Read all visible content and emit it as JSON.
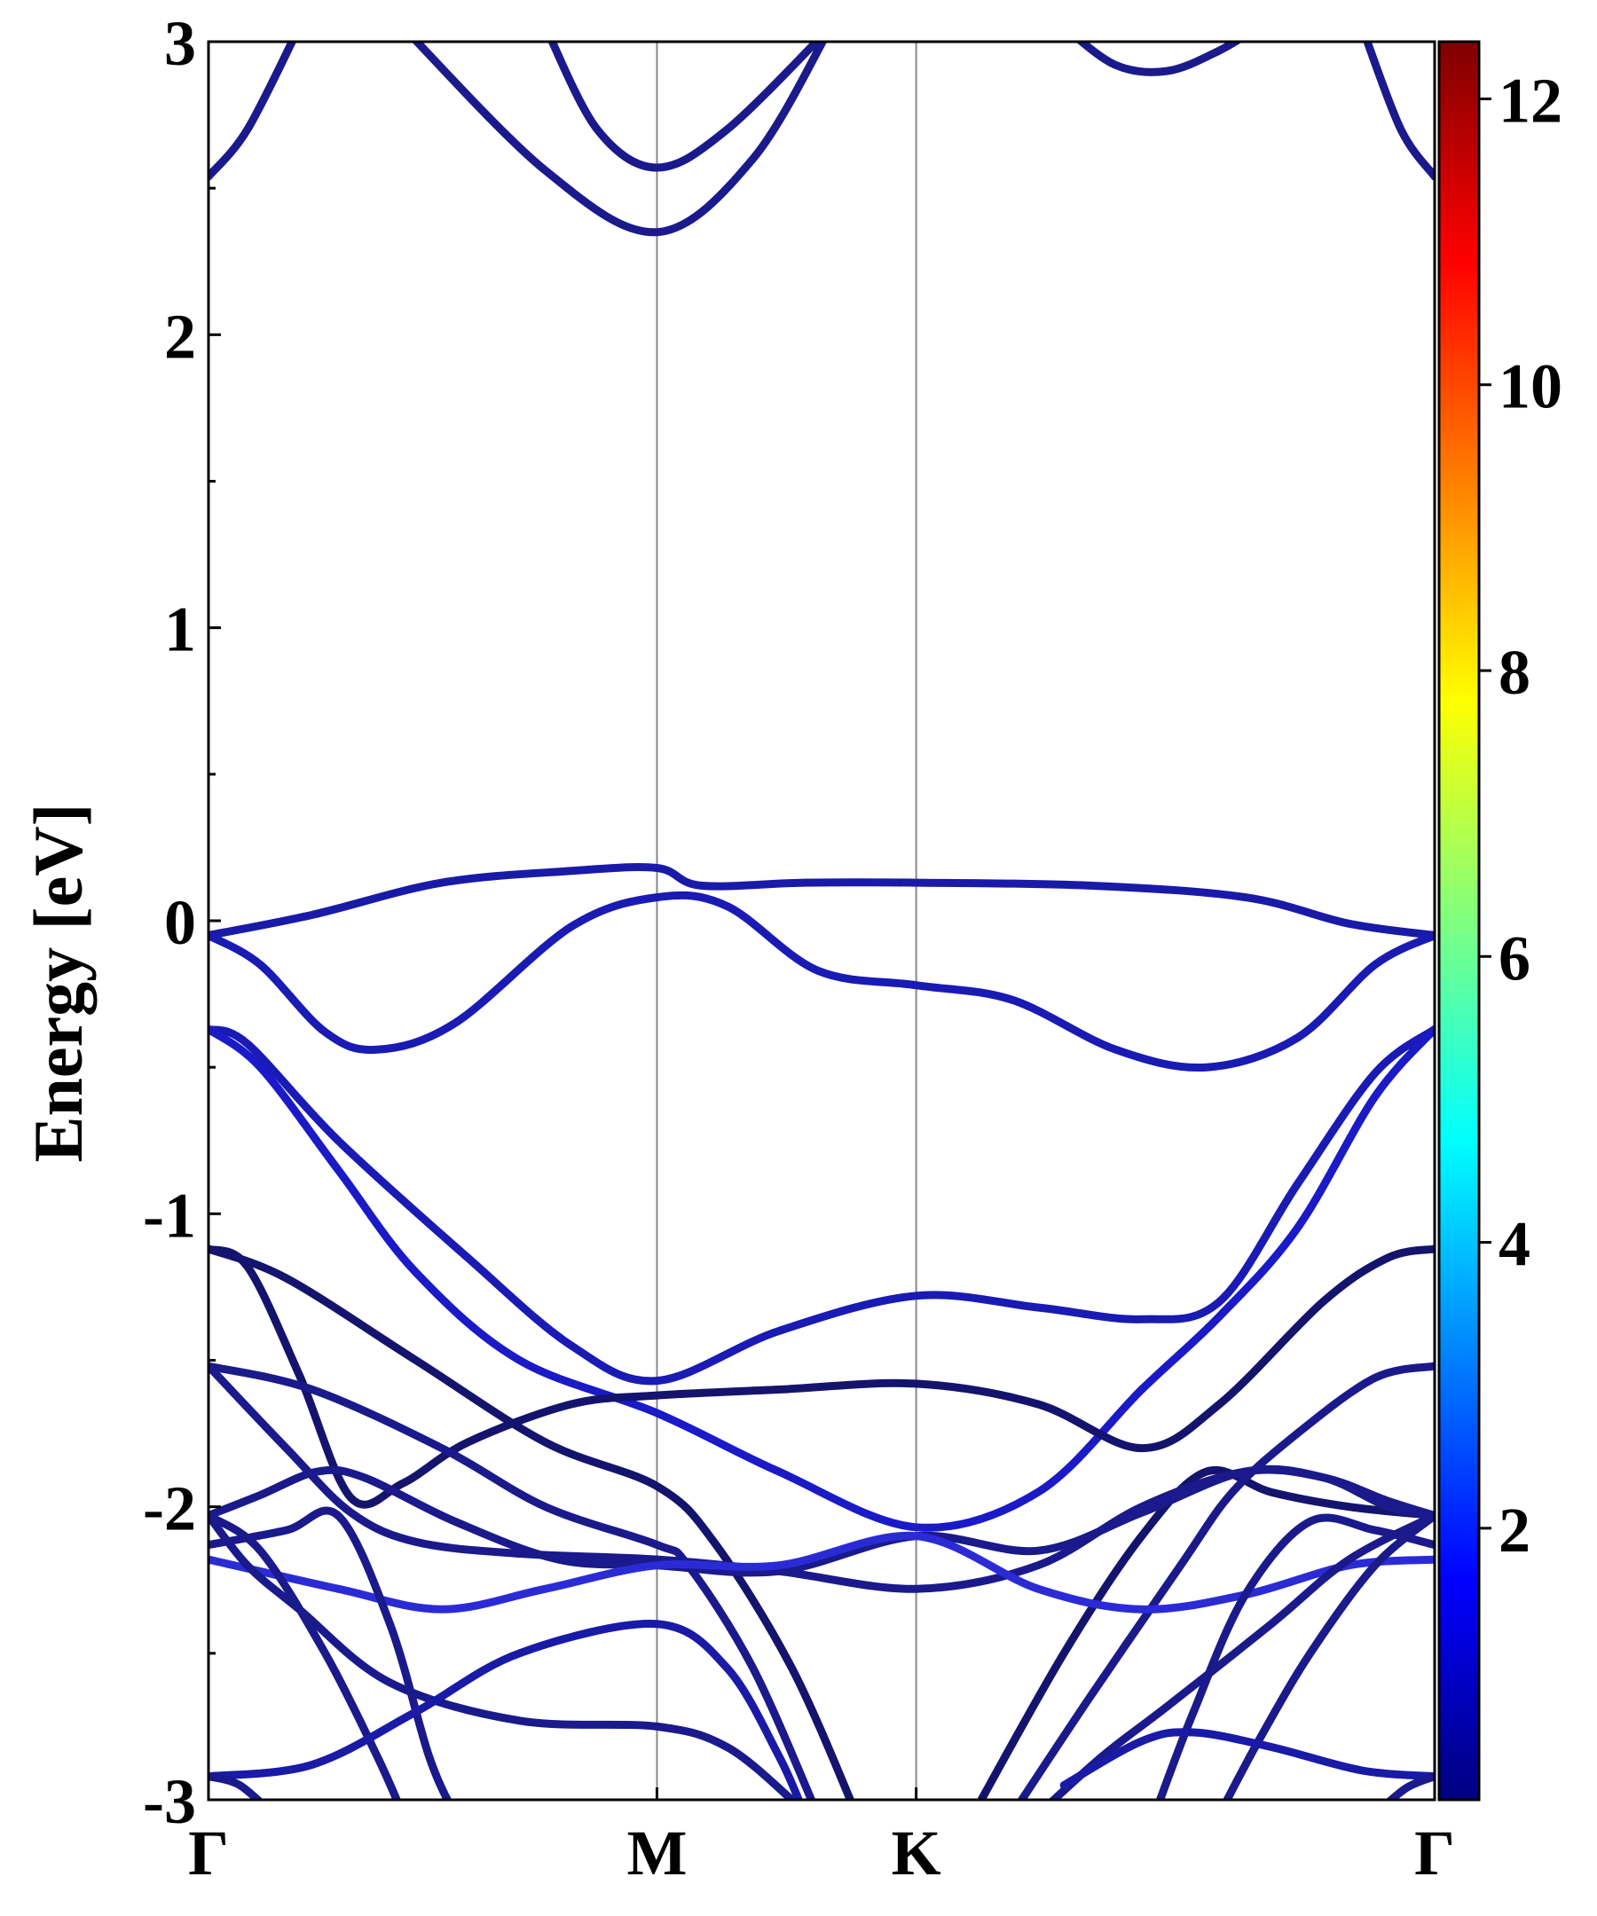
{
  "chart_data": {
    "type": "line",
    "title": "",
    "xlabel": "",
    "ylabel": "Energy [eV]",
    "ylim": [
      -3,
      3
    ],
    "x_range": [
      0,
      4.73
    ],
    "grid": false,
    "legend": "none",
    "kpoints": [
      {
        "label": "Γ",
        "x": 0
      },
      {
        "label": "M",
        "x": 1.73
      },
      {
        "label": "K",
        "x": 2.73
      },
      {
        "label": "Γ",
        "x": 4.73
      }
    ],
    "y_ticks": [
      "3",
      "2",
      "1",
      "0",
      "-1",
      "-2",
      "-3"
    ],
    "y_tick_values": [
      3,
      2,
      1,
      0,
      -1,
      -2,
      -3
    ],
    "colorbar": {
      "range": [
        0.1,
        12.4
      ],
      "tick_values": [
        2,
        4,
        6,
        8,
        10,
        12
      ],
      "tick_labels": [
        "2",
        "4",
        "6",
        "8",
        "10",
        "12"
      ],
      "colormap": [
        "#00007f",
        "#0000ff",
        "#007fff",
        "#00ffff",
        "#7fff7f",
        "#ffff00",
        "#ff7f00",
        "#ff0000",
        "#7f0000"
      ]
    },
    "series": [
      {
        "color": "#1a1a8c",
        "points": [
          [
            0,
            2.54
          ],
          [
            0.15,
            2.7
          ],
          [
            0.35,
            3.05
          ]
        ]
      },
      {
        "color": "#1a1a8c",
        "points": [
          [
            0.75,
            3.05
          ],
          [
            1.3,
            2.56
          ],
          [
            1.73,
            2.35
          ],
          [
            2.1,
            2.6
          ],
          [
            2.4,
            3.05
          ]
        ]
      },
      {
        "color": "#1a1a8c",
        "points": [
          [
            1.3,
            3.05
          ],
          [
            1.5,
            2.7
          ],
          [
            1.73,
            2.57
          ],
          [
            2.0,
            2.7
          ],
          [
            2.4,
            3.05
          ]
        ]
      },
      {
        "color": "#1a1a8c",
        "points": [
          [
            3.3,
            3.05
          ],
          [
            3.5,
            2.92
          ],
          [
            3.7,
            2.9
          ],
          [
            3.9,
            2.97
          ],
          [
            4.05,
            3.05
          ]
        ]
      },
      {
        "color": "#1a1a8c",
        "points": [
          [
            4.45,
            3.05
          ],
          [
            4.6,
            2.7
          ],
          [
            4.73,
            2.54
          ]
        ]
      },
      {
        "color": "#1a1aa8",
        "points": [
          [
            0,
            -0.05
          ],
          [
            0.4,
            0.02
          ],
          [
            0.9,
            0.13
          ],
          [
            1.4,
            0.17
          ],
          [
            1.73,
            0.18
          ],
          [
            1.9,
            0.12
          ],
          [
            2.3,
            0.13
          ],
          [
            2.73,
            0.13
          ],
          [
            3.4,
            0.12
          ],
          [
            4.0,
            0.08
          ],
          [
            4.4,
            -0.01
          ],
          [
            4.73,
            -0.05
          ]
        ]
      },
      {
        "color": "#1a1ab4",
        "points": [
          [
            0,
            -0.05
          ],
          [
            0.2,
            -0.15
          ],
          [
            0.45,
            -0.38
          ],
          [
            0.65,
            -0.44
          ],
          [
            0.95,
            -0.35
          ],
          [
            1.4,
            -0.02
          ],
          [
            1.73,
            0.08
          ],
          [
            2.0,
            0.05
          ],
          [
            2.35,
            -0.17
          ],
          [
            2.73,
            -0.22
          ],
          [
            3.1,
            -0.27
          ],
          [
            3.5,
            -0.44
          ],
          [
            3.85,
            -0.5
          ],
          [
            4.2,
            -0.4
          ],
          [
            4.5,
            -0.15
          ],
          [
            4.73,
            -0.05
          ]
        ]
      },
      {
        "color": "#1a1ab4",
        "points": [
          [
            0,
            -0.37
          ],
          [
            0.15,
            -0.42
          ],
          [
            0.5,
            -0.75
          ],
          [
            1.0,
            -1.15
          ],
          [
            1.4,
            -1.45
          ],
          [
            1.73,
            -1.57
          ],
          [
            2.2,
            -1.4
          ],
          [
            2.73,
            -1.28
          ],
          [
            3.2,
            -1.32
          ],
          [
            3.6,
            -1.36
          ],
          [
            3.9,
            -1.3
          ],
          [
            4.2,
            -0.9
          ],
          [
            4.5,
            -0.52
          ],
          [
            4.73,
            -0.37
          ]
        ]
      },
      {
        "color": "#1a1ac8",
        "points": [
          [
            0,
            -0.37
          ],
          [
            0.2,
            -0.5
          ],
          [
            0.5,
            -0.85
          ],
          [
            0.8,
            -1.2
          ],
          [
            1.2,
            -1.5
          ],
          [
            1.73,
            -1.68
          ],
          [
            2.2,
            -1.88
          ],
          [
            2.73,
            -2.07
          ],
          [
            3.2,
            -1.95
          ],
          [
            3.6,
            -1.6
          ],
          [
            3.9,
            -1.35
          ],
          [
            4.2,
            -1.05
          ],
          [
            4.5,
            -0.6
          ],
          [
            4.73,
            -0.37
          ]
        ]
      },
      {
        "color": "#14146e",
        "points": [
          [
            0,
            -1.12
          ],
          [
            0.3,
            -1.22
          ],
          [
            0.8,
            -1.5
          ],
          [
            1.3,
            -1.78
          ],
          [
            1.73,
            -1.93
          ],
          [
            1.95,
            -2.12
          ],
          [
            2.25,
            -2.55
          ],
          [
            2.5,
            -3.05
          ]
        ]
      },
      {
        "color": "#14146e",
        "points": [
          [
            2.95,
            -3.05
          ],
          [
            3.3,
            -2.5
          ],
          [
            3.6,
            -2.1
          ],
          [
            3.85,
            -1.88
          ],
          [
            4.1,
            -1.95
          ],
          [
            4.4,
            -2.0
          ],
          [
            4.73,
            -2.03
          ]
        ]
      },
      {
        "color": "#14146e",
        "points": [
          [
            0,
            -1.12
          ],
          [
            0.15,
            -1.18
          ],
          [
            0.35,
            -1.55
          ],
          [
            0.55,
            -1.97
          ],
          [
            0.75,
            -1.92
          ],
          [
            1.0,
            -1.78
          ],
          [
            1.4,
            -1.65
          ],
          [
            1.73,
            -1.62
          ],
          [
            2.2,
            -1.6
          ],
          [
            2.73,
            -1.58
          ],
          [
            3.2,
            -1.65
          ],
          [
            3.6,
            -1.8
          ],
          [
            3.9,
            -1.65
          ],
          [
            4.3,
            -1.3
          ],
          [
            4.55,
            -1.15
          ],
          [
            4.73,
            -1.12
          ]
        ]
      },
      {
        "color": "#1a1a8c",
        "points": [
          [
            0,
            -1.52
          ],
          [
            0.4,
            -1.6
          ],
          [
            0.9,
            -1.8
          ],
          [
            1.3,
            -2.0
          ],
          [
            1.73,
            -2.13
          ],
          [
            1.85,
            -2.2
          ],
          [
            2.1,
            -2.55
          ],
          [
            2.35,
            -3.05
          ]
        ]
      },
      {
        "color": "#1a1a8c",
        "points": [
          [
            3.1,
            -3.05
          ],
          [
            3.4,
            -2.65
          ],
          [
            3.75,
            -2.2
          ],
          [
            3.95,
            -1.95
          ],
          [
            4.2,
            -1.75
          ],
          [
            4.5,
            -1.56
          ],
          [
            4.73,
            -1.52
          ]
        ]
      },
      {
        "color": "#1a1a8c",
        "points": [
          [
            0,
            -1.52
          ],
          [
            0.3,
            -1.8
          ],
          [
            0.55,
            -2.02
          ],
          [
            0.8,
            -2.12
          ],
          [
            1.2,
            -2.16
          ],
          [
            1.73,
            -2.18
          ],
          [
            2.2,
            -2.22
          ],
          [
            2.73,
            -2.28
          ],
          [
            3.2,
            -2.2
          ],
          [
            3.6,
            -2.0
          ],
          [
            4.0,
            -1.88
          ],
          [
            4.3,
            -1.9
          ],
          [
            4.55,
            -1.98
          ],
          [
            4.73,
            -2.03
          ]
        ]
      },
      {
        "color": "#1a1a8c",
        "points": [
          [
            0,
            -2.03
          ],
          [
            0.2,
            -1.96
          ],
          [
            0.42,
            -1.88
          ],
          [
            0.6,
            -1.9
          ],
          [
            0.95,
            -2.05
          ],
          [
            1.35,
            -2.18
          ],
          [
            1.73,
            -2.2
          ],
          [
            2.2,
            -2.22
          ],
          [
            2.73,
            -2.1
          ],
          [
            3.2,
            -2.15
          ],
          [
            3.6,
            -2.02
          ],
          [
            4.0,
            -1.88
          ],
          [
            4.3,
            -1.9
          ],
          [
            4.55,
            -2.0
          ],
          [
            4.73,
            -2.03
          ]
        ]
      },
      {
        "color": "#2b2bd6",
        "points": [
          [
            0,
            -2.18
          ],
          [
            0.5,
            -2.28
          ],
          [
            0.9,
            -2.35
          ],
          [
            1.3,
            -2.28
          ],
          [
            1.73,
            -2.2
          ],
          [
            2.2,
            -2.2
          ],
          [
            2.73,
            -2.1
          ],
          [
            3.2,
            -2.28
          ],
          [
            3.6,
            -2.35
          ],
          [
            4.0,
            -2.3
          ],
          [
            4.4,
            -2.2
          ],
          [
            4.73,
            -2.18
          ]
        ]
      },
      {
        "color": "#1a1a8c",
        "points": [
          [
            0,
            -2.13
          ],
          [
            0.3,
            -2.08
          ],
          [
            0.5,
            -2.03
          ],
          [
            0.7,
            -2.4
          ],
          [
            0.85,
            -2.85
          ],
          [
            0.95,
            -3.05
          ]
        ]
      },
      {
        "color": "#1a1a8c",
        "points": [
          [
            0,
            -2.03
          ],
          [
            0.2,
            -2.15
          ],
          [
            0.45,
            -2.5
          ],
          [
            0.65,
            -2.85
          ],
          [
            0.75,
            -3.05
          ]
        ]
      },
      {
        "color": "#1a1a8c",
        "points": [
          [
            0,
            -2.03
          ],
          [
            0.15,
            -2.2
          ],
          [
            0.35,
            -2.35
          ],
          [
            0.7,
            -2.6
          ],
          [
            1.2,
            -2.73
          ],
          [
            1.73,
            -2.75
          ],
          [
            2.0,
            -2.82
          ],
          [
            2.25,
            -3.0
          ],
          [
            2.3,
            -3.05
          ]
        ]
      },
      {
        "color": "#1a1aa8",
        "points": [
          [
            0,
            -2.92
          ],
          [
            0.4,
            -2.88
          ],
          [
            0.8,
            -2.7
          ],
          [
            1.2,
            -2.5
          ],
          [
            1.73,
            -2.4
          ],
          [
            2.0,
            -2.55
          ],
          [
            2.2,
            -2.85
          ],
          [
            2.3,
            -3.05
          ]
        ]
      },
      {
        "color": "#1a1a8c",
        "points": [
          [
            0,
            -2.92
          ],
          [
            0.12,
            -2.95
          ],
          [
            0.25,
            -3.05
          ]
        ]
      },
      {
        "color": "#1a1a8c",
        "points": [
          [
            3.2,
            -3.05
          ],
          [
            3.45,
            -2.85
          ],
          [
            3.7,
            -2.68
          ],
          [
            4.1,
            -2.4
          ],
          [
            4.4,
            -2.18
          ],
          [
            4.73,
            -2.03
          ]
        ]
      },
      {
        "color": "#1a1a8c",
        "points": [
          [
            3.65,
            -3.05
          ],
          [
            3.8,
            -2.7
          ],
          [
            4.0,
            -2.3
          ],
          [
            4.25,
            -2.05
          ],
          [
            4.5,
            -2.08
          ],
          [
            4.73,
            -2.13
          ]
        ]
      },
      {
        "color": "#1a1a8c",
        "points": [
          [
            3.9,
            -3.05
          ],
          [
            4.05,
            -2.8
          ],
          [
            4.25,
            -2.5
          ],
          [
            4.5,
            -2.2
          ],
          [
            4.73,
            -2.03
          ]
        ]
      },
      {
        "color": "#1a1aa8",
        "points": [
          [
            3.3,
            -2.95
          ],
          [
            3.6,
            -2.8
          ],
          [
            3.8,
            -2.77
          ],
          [
            4.1,
            -2.82
          ],
          [
            4.45,
            -2.9
          ],
          [
            4.73,
            -2.92
          ]
        ]
      },
      {
        "color": "#1a1a8c",
        "points": [
          [
            4.5,
            -3.05
          ],
          [
            4.62,
            -2.96
          ],
          [
            4.73,
            -2.92
          ]
        ]
      }
    ]
  }
}
